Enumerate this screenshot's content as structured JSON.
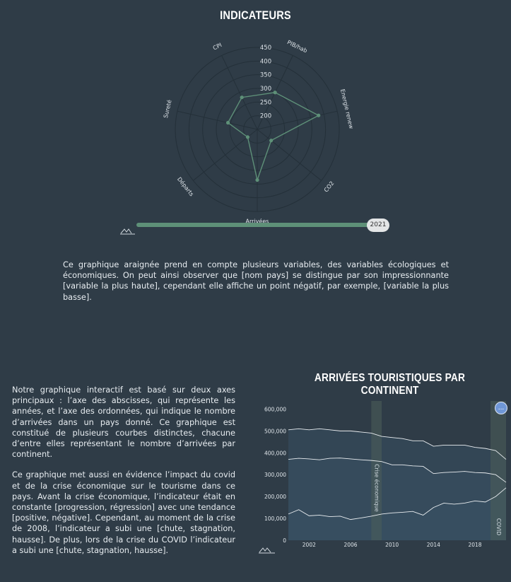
{
  "radar": {
    "title": "INDICATEURS",
    "slider_year": "2021"
  },
  "description_radar": "Ce graphique araignée prend en compte plusieurs variables, des variables écologiques et économiques. On peut ainsi observer que [nom pays] se distingue par son impressionnante [variable la plus haute], cependant elle affiche un point négatif, par exemple, [variable la plus basse].",
  "line_chart": {
    "title": "ARRIVÉES TOURISTIQUES PAR CONTINENT",
    "toggle_label": "..."
  },
  "description_line": [
    "Notre graphique interactif est basé sur deux axes principaux : l’axe des abscisses, qui représente les années, et l’axe des ordonnées, qui indique le nombre d’arrivées dans un pays donné. Ce graphique est constitué de plusieurs courbes distinctes, chacune d’entre elles représentant le nombre d’arrivées par continent.",
    "Ce graphique met aussi en évidence l’impact du covid et de la crise économique sur le tourisme dans ce pays. Avant la crise économique, l’indicateur était en constante [progression, régression] avec une tendance [positive, négative]. Cependant, au moment de la crise de 2008, l’indicateur a subi une [chute, stagnation, hausse]. De plus, lors de la crise du COVID l’indicateur a subi une [chute, stagnation, hausse]."
  ],
  "colors": {
    "background": "#2f3c47",
    "radar_line": "#5e9078",
    "line_fill": "#3a5166",
    "crisis_band": "#4c5f5a"
  },
  "chart_data": [
    {
      "type": "radar",
      "title": "INDICATEURS",
      "axes": [
        "PIB/hab",
        "Energie renew",
        "CO2",
        "Arrivées",
        "Départs",
        "Sureté",
        "CPI"
      ],
      "radial_ticks": [
        200,
        250,
        300,
        350,
        400,
        450
      ],
      "rlim": [
        150,
        450
      ],
      "values": [
        300,
        380,
        215,
        335,
        195,
        260,
        280
      ]
    },
    {
      "type": "area",
      "title": "ARRIVÉES TOURISTIQUES PAR CONTINENT",
      "x_ticks": [
        2002,
        2006,
        2010,
        2014,
        2018
      ],
      "y_ticks": [
        "0",
        "100,000",
        "200,000",
        "300,000",
        "400,000",
        "500,000",
        "600,000"
      ],
      "ylim": [
        0,
        650000
      ],
      "xlim": [
        2000,
        2021
      ],
      "x": [
        2000,
        2001,
        2002,
        2003,
        2004,
        2005,
        2006,
        2007,
        2008,
        2009,
        2010,
        2011,
        2012,
        2013,
        2014,
        2015,
        2016,
        2017,
        2018,
        2019,
        2020,
        2021
      ],
      "series": [
        {
          "values": [
            505000,
            510000,
            505000,
            510000,
            505000,
            500000,
            500000,
            495000,
            490000,
            475000,
            470000,
            465000,
            455000,
            455000,
            430000,
            435000,
            435000,
            435000,
            425000,
            420000,
            410000,
            370000
          ]
        },
        {
          "values": [
            370000,
            375000,
            372000,
            368000,
            375000,
            376000,
            372000,
            368000,
            365000,
            360000,
            345000,
            345000,
            340000,
            338000,
            305000,
            310000,
            312000,
            315000,
            310000,
            308000,
            300000,
            265000
          ]
        },
        {
          "values": [
            120000,
            140000,
            112000,
            115000,
            108000,
            110000,
            95000,
            102000,
            110000,
            120000,
            125000,
            128000,
            132000,
            115000,
            150000,
            170000,
            165000,
            170000,
            180000,
            175000,
            200000,
            240000
          ]
        }
      ],
      "annotations": [
        {
          "label": "Crise économique",
          "x_range": [
            2008,
            2009
          ]
        },
        {
          "label": "COVID",
          "x_range": [
            2019.5,
            2021
          ]
        }
      ]
    }
  ]
}
